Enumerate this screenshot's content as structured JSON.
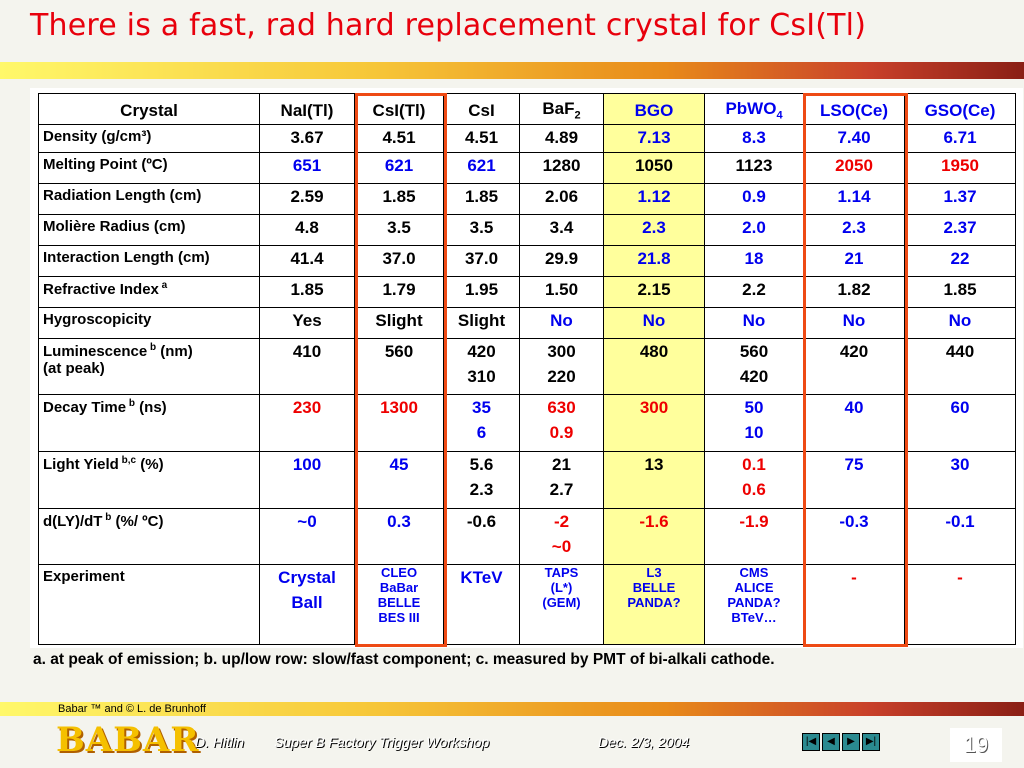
{
  "title": "There is a fast, rad hard replacement crystal for CsI(Tl)",
  "table": {
    "header": {
      "label": "Crystal",
      "cols": [
        {
          "text": "NaI(Tl)",
          "sub": ""
        },
        {
          "text": "CsI(Tl)",
          "sub": ""
        },
        {
          "text": "CsI",
          "sub": ""
        },
        {
          "text": "BaF",
          "sub": "2"
        },
        {
          "text": "BGO",
          "sub": ""
        },
        {
          "text": "PbWO",
          "sub": "4"
        },
        {
          "text": "LSO(Ce)",
          "sub": ""
        },
        {
          "text": "GSO(Ce)",
          "sub": ""
        }
      ]
    },
    "rows": [
      {
        "label": "Density (g/cm³)",
        "sup": "",
        "label2": "",
        "cells": [
          [
            "3.67"
          ],
          [
            "4.51"
          ],
          [
            "4.51"
          ],
          [
            "4.89"
          ],
          [
            "7.13"
          ],
          [
            "8.3"
          ],
          [
            "7.40"
          ],
          [
            "6.71"
          ]
        ],
        "colors": [
          "black",
          "black",
          "black",
          "black",
          "blue",
          "blue",
          "blue",
          "blue"
        ]
      },
      {
        "label": "Melting Point  (ºC)",
        "sup": "",
        "label2": "",
        "cells": [
          [
            "651"
          ],
          [
            "621"
          ],
          [
            "621"
          ],
          [
            "1280"
          ],
          [
            "1050"
          ],
          [
            "1123"
          ],
          [
            "2050"
          ],
          [
            "1950"
          ]
        ],
        "colors": [
          "blue",
          "blue",
          "blue",
          "black",
          "black",
          "black",
          "red",
          "red"
        ]
      },
      {
        "label": "Radiation Length (cm)",
        "sup": "",
        "label2": "",
        "cells": [
          [
            "2.59"
          ],
          [
            "1.85"
          ],
          [
            "1.85"
          ],
          [
            "2.06"
          ],
          [
            "1.12"
          ],
          [
            "0.9"
          ],
          [
            "1.14"
          ],
          [
            "1.37"
          ]
        ],
        "colors": [
          "black",
          "black",
          "black",
          "black",
          "blue",
          "blue",
          "blue",
          "blue"
        ]
      },
      {
        "label": "Molière Radius (cm)",
        "sup": "",
        "label2": "",
        "cells": [
          [
            "4.8"
          ],
          [
            "3.5"
          ],
          [
            "3.5"
          ],
          [
            "3.4"
          ],
          [
            "2.3"
          ],
          [
            "2.0"
          ],
          [
            "2.3"
          ],
          [
            "2.37"
          ]
        ],
        "colors": [
          "black",
          "black",
          "black",
          "black",
          "blue",
          "blue",
          "blue",
          "blue"
        ]
      },
      {
        "label": "Interaction Length (cm)",
        "sup": "",
        "label2": "",
        "cells": [
          [
            "41.4"
          ],
          [
            "37.0"
          ],
          [
            "37.0"
          ],
          [
            "29.9"
          ],
          [
            "21.8"
          ],
          [
            "18"
          ],
          [
            "21"
          ],
          [
            "22"
          ]
        ],
        "colors": [
          "black",
          "black",
          "black",
          "black",
          "blue",
          "blue",
          "blue",
          "blue"
        ]
      },
      {
        "label": "Refractive Index",
        "sup": "a",
        "label2": "",
        "cells": [
          [
            "1.85"
          ],
          [
            "1.79"
          ],
          [
            "1.95"
          ],
          [
            "1.50"
          ],
          [
            "2.15"
          ],
          [
            "2.2"
          ],
          [
            "1.82"
          ],
          [
            "1.85"
          ]
        ],
        "colors": [
          "black",
          "black",
          "black",
          "black",
          "black",
          "black",
          "black",
          "black"
        ]
      },
      {
        "label": "Hygroscopicity",
        "sup": "",
        "label2": "",
        "cells": [
          [
            "Yes"
          ],
          [
            "Slight"
          ],
          [
            "Slight"
          ],
          [
            "No"
          ],
          [
            "No"
          ],
          [
            "No"
          ],
          [
            "No"
          ],
          [
            "No"
          ]
        ],
        "colors": [
          "black",
          "black",
          "black",
          "blue",
          "blue",
          "blue",
          "blue",
          "blue"
        ]
      },
      {
        "label": "Luminescence",
        "sup": "b",
        "label_suffix": " (nm)",
        "label2": "(at peak)",
        "cells": [
          [
            "410"
          ],
          [
            "560"
          ],
          [
            "420",
            "310"
          ],
          [
            "300",
            "220"
          ],
          [
            "480"
          ],
          [
            "560",
            "420"
          ],
          [
            "420"
          ],
          [
            "440"
          ]
        ],
        "colors": [
          "black",
          "black",
          "black",
          "black",
          "black",
          "black",
          "black",
          "black"
        ]
      },
      {
        "label": "Decay Time",
        "sup": "b",
        "label_suffix": " (ns)",
        "label2": "",
        "cells": [
          [
            "230"
          ],
          [
            "1300"
          ],
          [
            "35",
            "6"
          ],
          [
            "630",
            "0.9"
          ],
          [
            "300"
          ],
          [
            "50",
            "10"
          ],
          [
            "40"
          ],
          [
            "60"
          ]
        ],
        "colors": [
          "red",
          "red",
          "blue",
          "red",
          "red",
          "blue",
          "blue",
          "blue"
        ]
      },
      {
        "label": "Light Yield",
        "sup": "b,c",
        "label_suffix": " (%)",
        "label2": "",
        "cells": [
          [
            "100"
          ],
          [
            "45"
          ],
          [
            "5.6",
            "2.3"
          ],
          [
            "21",
            "2.7"
          ],
          [
            "13"
          ],
          [
            "0.1",
            "0.6"
          ],
          [
            "75"
          ],
          [
            "30"
          ]
        ],
        "colors": [
          "blue",
          "blue",
          "black",
          "black",
          "black",
          "red",
          "blue",
          "blue"
        ]
      },
      {
        "label": "d(LY)/dT",
        "sup": "b",
        "label_suffix": " (%/ ºC)",
        "label2": "",
        "cells": [
          [
            "~0"
          ],
          [
            "0.3"
          ],
          [
            "-0.6"
          ],
          [
            "-2",
            "~0"
          ],
          [
            "-1.6"
          ],
          [
            "-1.9"
          ],
          [
            "-0.3"
          ],
          [
            "-0.1"
          ]
        ],
        "colors": [
          "blue",
          "blue",
          "black",
          "red",
          "red",
          "red",
          "blue",
          "blue"
        ]
      },
      {
        "label": "Experiment",
        "sup": "",
        "label2": "",
        "cells": [
          [
            "Crystal",
            "Ball"
          ],
          [
            "CLEO",
            "BaBar",
            "BELLE",
            "BES III"
          ],
          [
            "KTeV"
          ],
          [
            "TAPS",
            "(L*)",
            "(GEM)"
          ],
          [
            "L3",
            "BELLE",
            "PANDA?"
          ],
          [
            "CMS",
            "ALICE",
            "PANDA?",
            "BTeV…"
          ],
          [
            "-"
          ],
          [
            "-"
          ]
        ],
        "colors": [
          "blue",
          "blue",
          "blue",
          "blue",
          "blue",
          "blue",
          "red",
          "red"
        ]
      }
    ]
  },
  "footnote": "a. at peak of emission;  b. up/low row: slow/fast component;  c. measured by PMT of bi-alkali cathode.",
  "footer": {
    "copyright": "Babar ™ and © L. de Brunhoff",
    "logo": "BABAR",
    "author": "D. Hitlin",
    "event": "Super B Factory Trigger Workshop",
    "date": "Dec. 2/3, 2004",
    "page": "19"
  },
  "colors": {
    "title": "#e8000c",
    "highlight_box": "#ee4a14",
    "bgo_fill": "#ffff9c",
    "blue": "#0000ee",
    "red": "#ee0000"
  }
}
